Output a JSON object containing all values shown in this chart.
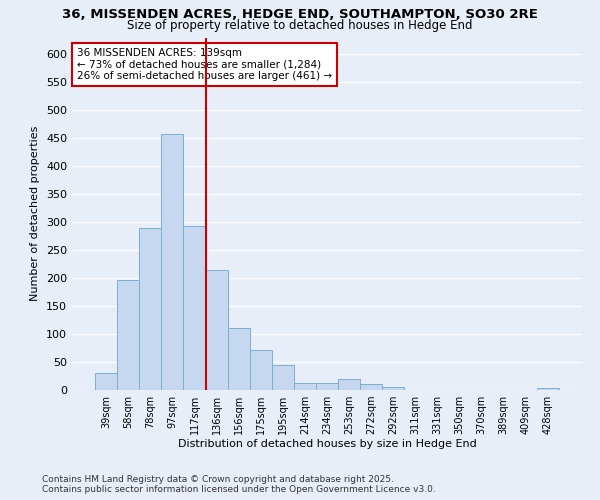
{
  "title": "36, MISSENDEN ACRES, HEDGE END, SOUTHAMPTON, SO30 2RE",
  "subtitle": "Size of property relative to detached houses in Hedge End",
  "xlabel": "Distribution of detached houses by size in Hedge End",
  "ylabel": "Number of detached properties",
  "bar_color": "#c5d8f0",
  "bar_edge_color": "#7aafd4",
  "bg_color": "#e8eef8",
  "grid_color": "#ffffff",
  "categories": [
    "39sqm",
    "58sqm",
    "78sqm",
    "97sqm",
    "117sqm",
    "136sqm",
    "156sqm",
    "175sqm",
    "195sqm",
    "214sqm",
    "234sqm",
    "253sqm",
    "272sqm",
    "292sqm",
    "311sqm",
    "331sqm",
    "350sqm",
    "370sqm",
    "389sqm",
    "409sqm",
    "428sqm"
  ],
  "values": [
    30,
    197,
    290,
    458,
    293,
    215,
    110,
    72,
    45,
    12,
    12,
    20,
    10,
    5,
    0,
    0,
    0,
    0,
    0,
    0,
    4
  ],
  "property_bin_index": 5,
  "annotation_title": "36 MISSENDEN ACRES: 139sqm",
  "annotation_line1": "← 73% of detached houses are smaller (1,284)",
  "annotation_line2": "26% of semi-detached houses are larger (461) →",
  "vline_color": "#cc0000",
  "annotation_box_edge": "#cc0000",
  "footnote1": "Contains HM Land Registry data © Crown copyright and database right 2025.",
  "footnote2": "Contains public sector information licensed under the Open Government Licence v3.0.",
  "ylim": [
    0,
    630
  ],
  "yticks": [
    0,
    50,
    100,
    150,
    200,
    250,
    300,
    350,
    400,
    450,
    500,
    550,
    600
  ]
}
